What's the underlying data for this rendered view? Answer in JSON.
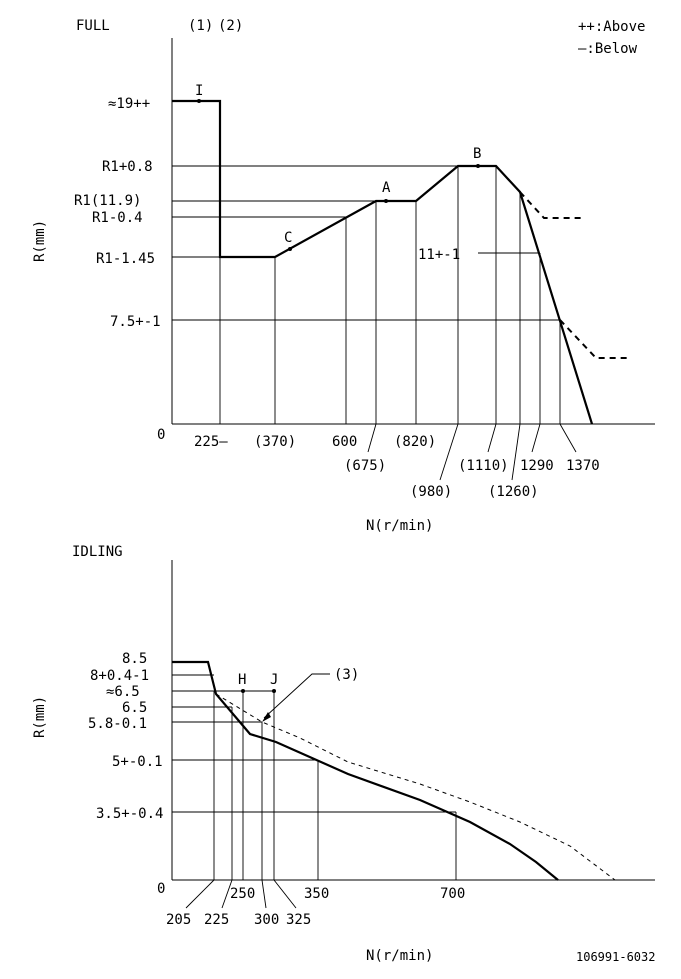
{
  "full": {
    "title": "FULL",
    "notes": [
      "(1)",
      "(2)"
    ],
    "legend_above": "++:Above",
    "legend_below": "—:Below",
    "y_axis_label": "R(mm)",
    "x_axis_label": "N(r/min)",
    "y_labels": [
      "≈19++",
      "R1+0.8",
      "R1(11.9)",
      "R1-0.4",
      "R1-1.45",
      "7.5+-1",
      "0"
    ],
    "side_label": "11+-1",
    "x_labels": [
      "225—",
      "(370)",
      "600",
      "(820)",
      "(675)",
      "(1110)",
      "1290",
      "1370",
      "(980)",
      "(1260)"
    ],
    "points": [
      "I",
      "B",
      "A",
      "C"
    ]
  },
  "idling": {
    "title": "IDLING",
    "y_axis_label": "R(mm)",
    "x_axis_label": "N(r/min)",
    "y_labels": [
      "8.5",
      "8+0.4-1",
      "≈6.5",
      "6.5",
      "5.8-0.1",
      "5+-0.1",
      "3.5+-0.4",
      "0"
    ],
    "points": [
      "H",
      "J"
    ],
    "note": "(3)",
    "x_labels": [
      "250",
      "350",
      "700",
      "205",
      "225",
      "300",
      "325"
    ]
  },
  "footer": {
    "code": "106991-6032"
  }
}
